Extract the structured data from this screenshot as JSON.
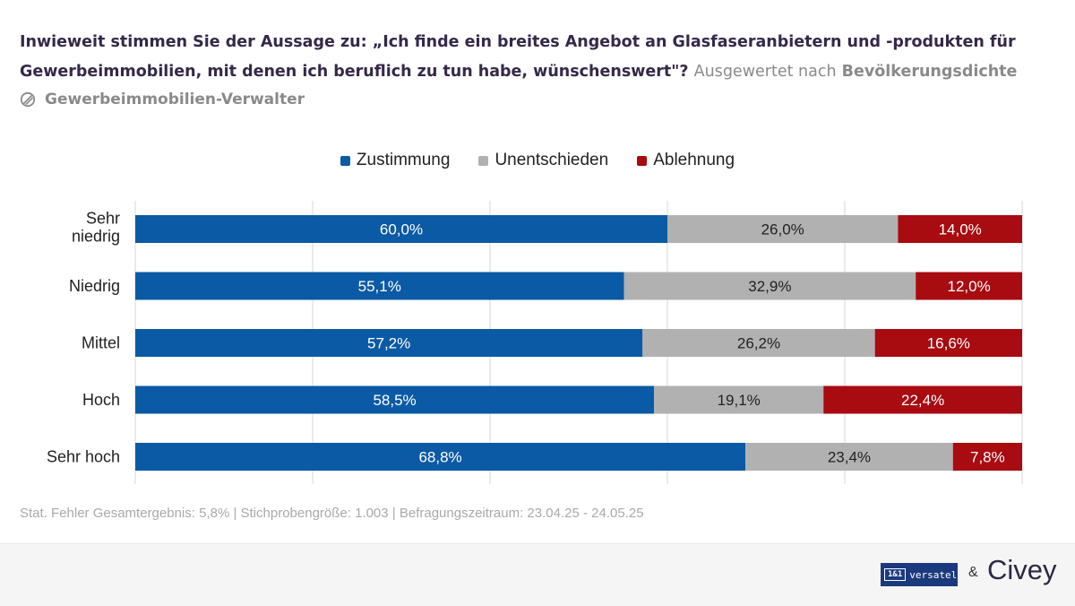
{
  "title": {
    "main": "Inwieweit stimmen Sie der Aussage zu: „Ich finde ein breites Angebot an Glasfaseranbietern und -produkten für Gewerbeimmobilien, mit denen ich beruflich zu tun habe, wünschenswert\"?",
    "evaluated_prefix": "Ausgewertet nach",
    "evaluated_by": "Bevölkerungsdichte"
  },
  "filter": {
    "label": "Gewerbeimmobilien-Verwalter",
    "icon": "filter-icon"
  },
  "chart_data": {
    "type": "bar",
    "orientation": "horizontal",
    "stacked": true,
    "categories": [
      "Sehr niedrig",
      "Niedrig",
      "Mittel",
      "Hoch",
      "Sehr hoch"
    ],
    "series": [
      {
        "name": "Zustimmung",
        "color": "#0b5aa5",
        "values": [
          60.0,
          55.1,
          57.2,
          58.5,
          68.8
        ],
        "labels": [
          "60,0%",
          "55,1%",
          "57,2%",
          "58,5%",
          "68,8%"
        ]
      },
      {
        "name": "Unentschieden",
        "color": "#b1b1b1",
        "values": [
          26.0,
          32.9,
          26.2,
          19.1,
          23.4
        ],
        "labels": [
          "26,0%",
          "32,9%",
          "26,2%",
          "19,1%",
          "23,4%"
        ]
      },
      {
        "name": "Ablehnung",
        "color": "#a80b10",
        "values": [
          14.0,
          12.0,
          16.6,
          22.4,
          7.8
        ],
        "labels": [
          "14,0%",
          "12,0%",
          "16,6%",
          "22,4%",
          "7,8%"
        ]
      }
    ],
    "xlim": [
      0,
      100
    ],
    "grid": true,
    "legend_position": "top-center"
  },
  "footer": {
    "note": "Stat. Fehler Gesamtergebnis: 5,8% | Stichprobengröße: 1.003 | Befragungszeitraum: 23.04.25 - 24.05.25",
    "logo_left_badge": "1&1",
    "logo_left_text": "versatel",
    "ampersand": "&",
    "logo_right": "Civey"
  }
}
